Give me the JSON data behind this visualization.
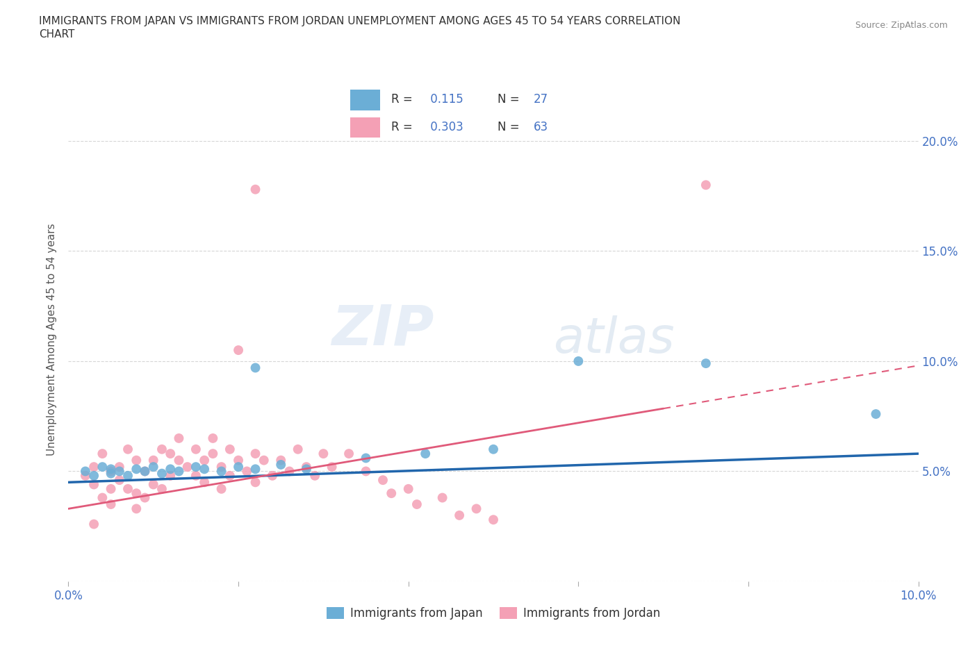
{
  "title_line1": "IMMIGRANTS FROM JAPAN VS IMMIGRANTS FROM JORDAN UNEMPLOYMENT AMONG AGES 45 TO 54 YEARS CORRELATION",
  "title_line2": "CHART",
  "source_text": "Source: ZipAtlas.com",
  "ylabel": "Unemployment Among Ages 45 to 54 years",
  "x_min": 0.0,
  "x_max": 0.1,
  "y_min": 0.0,
  "y_max": 0.22,
  "R_japan": 0.115,
  "N_japan": 27,
  "R_jordan": 0.303,
  "N_jordan": 63,
  "japan_color": "#6baed6",
  "jordan_color": "#f4a0b5",
  "japan_line_color": "#2166ac",
  "jordan_line_color": "#e05a7a",
  "japan_scatter": [
    [
      0.002,
      0.05
    ],
    [
      0.003,
      0.048
    ],
    [
      0.004,
      0.052
    ],
    [
      0.005,
      0.049
    ],
    [
      0.005,
      0.051
    ],
    [
      0.006,
      0.05
    ],
    [
      0.007,
      0.048
    ],
    [
      0.008,
      0.051
    ],
    [
      0.009,
      0.05
    ],
    [
      0.01,
      0.052
    ],
    [
      0.011,
      0.049
    ],
    [
      0.012,
      0.051
    ],
    [
      0.013,
      0.05
    ],
    [
      0.015,
      0.052
    ],
    [
      0.016,
      0.051
    ],
    [
      0.018,
      0.05
    ],
    [
      0.02,
      0.052
    ],
    [
      0.022,
      0.051
    ],
    [
      0.025,
      0.053
    ],
    [
      0.028,
      0.051
    ],
    [
      0.035,
      0.056
    ],
    [
      0.042,
      0.058
    ],
    [
      0.05,
      0.06
    ],
    [
      0.022,
      0.097
    ],
    [
      0.06,
      0.1
    ],
    [
      0.075,
      0.099
    ],
    [
      0.095,
      0.076
    ]
  ],
  "jordan_scatter": [
    [
      0.002,
      0.048
    ],
    [
      0.003,
      0.052
    ],
    [
      0.003,
      0.044
    ],
    [
      0.004,
      0.058
    ],
    [
      0.004,
      0.038
    ],
    [
      0.005,
      0.05
    ],
    [
      0.005,
      0.042
    ],
    [
      0.005,
      0.035
    ],
    [
      0.006,
      0.052
    ],
    [
      0.006,
      0.046
    ],
    [
      0.007,
      0.06
    ],
    [
      0.007,
      0.042
    ],
    [
      0.008,
      0.055
    ],
    [
      0.008,
      0.04
    ],
    [
      0.008,
      0.033
    ],
    [
      0.009,
      0.05
    ],
    [
      0.009,
      0.038
    ],
    [
      0.01,
      0.055
    ],
    [
      0.01,
      0.044
    ],
    [
      0.011,
      0.06
    ],
    [
      0.011,
      0.042
    ],
    [
      0.012,
      0.058
    ],
    [
      0.012,
      0.048
    ],
    [
      0.013,
      0.065
    ],
    [
      0.013,
      0.055
    ],
    [
      0.014,
      0.052
    ],
    [
      0.015,
      0.06
    ],
    [
      0.015,
      0.048
    ],
    [
      0.016,
      0.055
    ],
    [
      0.016,
      0.045
    ],
    [
      0.017,
      0.065
    ],
    [
      0.017,
      0.058
    ],
    [
      0.018,
      0.052
    ],
    [
      0.018,
      0.042
    ],
    [
      0.019,
      0.06
    ],
    [
      0.019,
      0.048
    ],
    [
      0.02,
      0.055
    ],
    [
      0.021,
      0.05
    ],
    [
      0.022,
      0.058
    ],
    [
      0.022,
      0.045
    ],
    [
      0.023,
      0.055
    ],
    [
      0.024,
      0.048
    ],
    [
      0.025,
      0.055
    ],
    [
      0.026,
      0.05
    ],
    [
      0.027,
      0.06
    ],
    [
      0.028,
      0.052
    ],
    [
      0.029,
      0.048
    ],
    [
      0.03,
      0.058
    ],
    [
      0.031,
      0.052
    ],
    [
      0.033,
      0.058
    ],
    [
      0.035,
      0.05
    ],
    [
      0.037,
      0.046
    ],
    [
      0.038,
      0.04
    ],
    [
      0.04,
      0.042
    ],
    [
      0.041,
      0.035
    ],
    [
      0.044,
      0.038
    ],
    [
      0.046,
      0.03
    ],
    [
      0.048,
      0.033
    ],
    [
      0.05,
      0.028
    ],
    [
      0.02,
      0.105
    ],
    [
      0.022,
      0.178
    ],
    [
      0.075,
      0.18
    ],
    [
      0.003,
      0.026
    ]
  ],
  "watermark_zip": "ZIP",
  "watermark_atlas": "atlas",
  "legend_japan_label": "Immigrants from Japan",
  "legend_jordan_label": "Immigrants from Jordan",
  "background_color": "#ffffff",
  "grid_color": "#cccccc",
  "japan_trend": [
    0.0,
    0.1,
    0.045,
    0.058
  ],
  "jordan_trend": [
    0.0,
    0.1,
    0.033,
    0.098
  ],
  "jordan_trend_dashed_start": 0.07
}
